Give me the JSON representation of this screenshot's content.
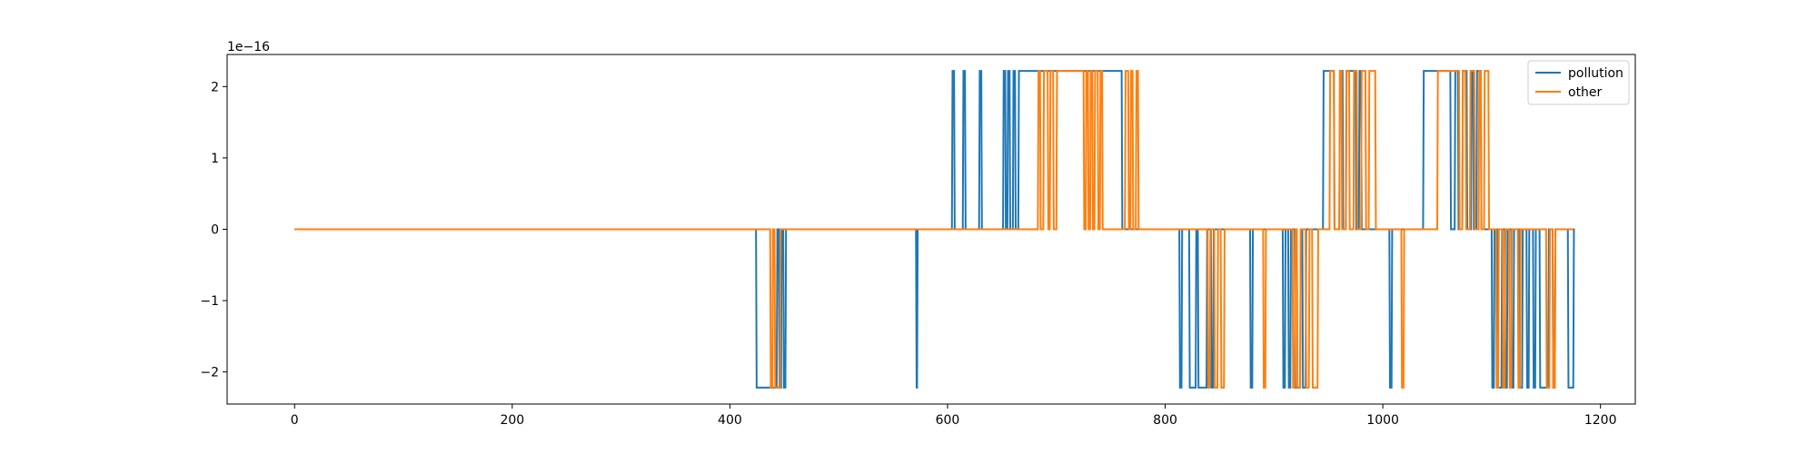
{
  "chart_data": {
    "type": "line",
    "title": "",
    "xlabel": "",
    "ylabel": "",
    "y_offset_text": "1e−16",
    "xlim": [
      -62,
      1232
    ],
    "ylim": [
      -2.45,
      2.45
    ],
    "x_ticks": [
      0,
      200,
      400,
      600,
      800,
      1000,
      1200
    ],
    "x_tick_labels": [
      "0",
      "200",
      "400",
      "600",
      "800",
      "1000",
      "1200"
    ],
    "y_ticks": [
      -2,
      -1,
      0,
      1,
      2
    ],
    "y_tick_labels": [
      "−2",
      "−1",
      "0",
      "1",
      "2"
    ],
    "grid": false,
    "legend": {
      "placement": "top-right",
      "entries": [
        "pollution",
        "other"
      ]
    },
    "series": [
      {
        "name": "pollution",
        "color": "#1f77b4",
        "x_start": 0,
        "x_end": 1175,
        "level": 2.22,
        "high_segments": [
          [
            604,
            606
          ],
          [
            614,
            616
          ],
          [
            629,
            631
          ],
          [
            651,
            653
          ],
          [
            655,
            657
          ],
          [
            660,
            662
          ],
          [
            665,
            760
          ],
          [
            945,
            955
          ],
          [
            960,
            963
          ],
          [
            966,
            975
          ],
          [
            978,
            980
          ],
          [
            1037,
            1062
          ],
          [
            1066,
            1069
          ],
          [
            1073,
            1077
          ],
          [
            1081,
            1083
          ],
          [
            1086,
            1090
          ]
        ],
        "low_segments": [
          [
            424,
            443
          ],
          [
            445,
            447
          ],
          [
            449,
            451
          ],
          [
            571,
            572
          ],
          [
            813,
            815
          ],
          [
            822,
            828
          ],
          [
            830,
            838
          ],
          [
            842,
            844
          ],
          [
            878,
            880
          ],
          [
            908,
            910
          ],
          [
            913,
            915
          ],
          [
            919,
            924
          ],
          [
            926,
            929
          ],
          [
            1006,
            1008
          ],
          [
            1100,
            1102
          ],
          [
            1105,
            1109
          ],
          [
            1112,
            1114
          ],
          [
            1118,
            1120
          ],
          [
            1125,
            1128
          ],
          [
            1132,
            1134
          ],
          [
            1138,
            1140
          ],
          [
            1144,
            1152
          ],
          [
            1156,
            1158
          ],
          [
            1170,
            1175
          ]
        ]
      },
      {
        "name": "other",
        "color": "#ff7f0e",
        "x_start": 0,
        "x_end": 1175,
        "level": 2.22,
        "high_segments": [
          [
            683,
            685
          ],
          [
            688,
            692
          ],
          [
            694,
            697
          ],
          [
            700,
            725
          ],
          [
            727,
            729
          ],
          [
            731,
            733
          ],
          [
            735,
            738
          ],
          [
            740,
            742
          ],
          [
            763,
            766
          ],
          [
            768,
            770
          ],
          [
            773,
            775
          ],
          [
            951,
            955
          ],
          [
            960,
            962
          ],
          [
            966,
            969
          ],
          [
            973,
            976
          ],
          [
            980,
            984
          ],
          [
            987,
            993
          ],
          [
            1050,
            1070
          ],
          [
            1073,
            1076
          ],
          [
            1080,
            1084
          ],
          [
            1088,
            1090
          ],
          [
            1093,
            1097
          ]
        ],
        "low_segments": [
          [
            437,
            439
          ],
          [
            441,
            446
          ],
          [
            839,
            841
          ],
          [
            845,
            848
          ],
          [
            851,
            854
          ],
          [
            890,
            892
          ],
          [
            917,
            919
          ],
          [
            921,
            924
          ],
          [
            929,
            932
          ],
          [
            935,
            940
          ],
          [
            1017,
            1019
          ],
          [
            1104,
            1106
          ],
          [
            1110,
            1112
          ],
          [
            1116,
            1118
          ],
          [
            1124,
            1126
          ],
          [
            1150,
            1153
          ],
          [
            1156,
            1158
          ]
        ]
      }
    ]
  }
}
